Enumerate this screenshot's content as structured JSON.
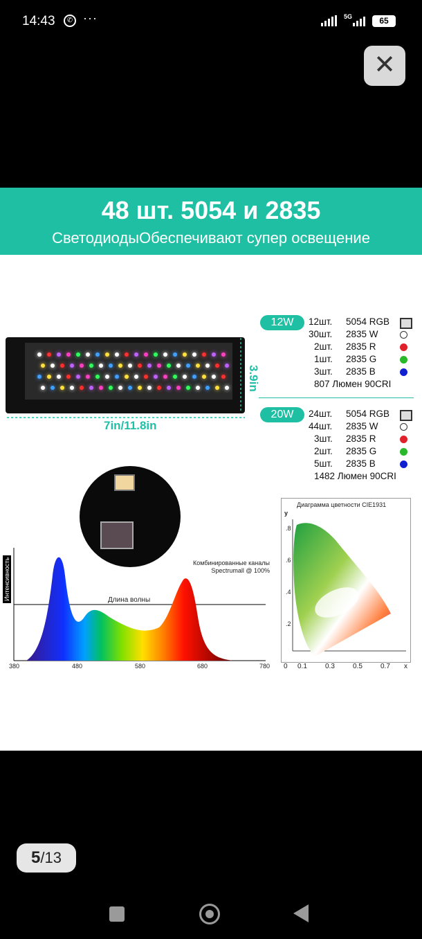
{
  "status_bar": {
    "time": "14:43",
    "dots": "···",
    "network": "5G",
    "battery": "65"
  },
  "viewer": {
    "close_icon": "close-icon",
    "page_current": "5",
    "page_separator": "/",
    "page_total": "13"
  },
  "image": {
    "banner_title": "48 шт. 5054 и 2835",
    "banner_subtitle": "СветодиодыОбеспечивают супер освещение",
    "dim_width": "7in/11.8in",
    "dim_height": "3.9in",
    "spec12": {
      "badge": "12W",
      "rows": [
        {
          "count": "12шт.",
          "type": "5054 RGB"
        },
        {
          "count": "30шт.",
          "type": "2835 W"
        },
        {
          "count": "2шт.",
          "type": "2835 R"
        },
        {
          "count": "1шт.",
          "type": "2835 G"
        },
        {
          "count": "3шт.",
          "type": "2835 B"
        }
      ],
      "lumens": "807 Люмен 90CRI"
    },
    "spec20": {
      "badge": "20W",
      "rows": [
        {
          "count": "24шт.",
          "type": "5054 RGB"
        },
        {
          "count": "44шт.",
          "type": "2835 W"
        },
        {
          "count": "3шт.",
          "type": "2835 R"
        },
        {
          "count": "2шт.",
          "type": "2835 G"
        },
        {
          "count": "5шт.",
          "type": "2835 B"
        }
      ],
      "lumens": "1482 Люмен 90CRI"
    },
    "spectrum": {
      "ylabel": "Интенсивность",
      "xlabel": "Длина волны",
      "caption1": "Комбинированные каналы",
      "caption2": "Spectrumall @ 100%",
      "ticks": [
        "380",
        "480",
        "580",
        "680",
        "780"
      ]
    },
    "cie": {
      "title": "Диаграмма цветности CIE1931",
      "y_axis": "y",
      "y_ticks": [
        ".8",
        ".6",
        ".4",
        ".2"
      ],
      "x_ticks": [
        "0",
        "0.1",
        "0.3",
        "0.5",
        "0.7",
        "x"
      ]
    }
  },
  "colors": {
    "accent": "#1fbfa4",
    "red": "#e0202a",
    "green": "#28b82a",
    "blue": "#1020d0"
  }
}
